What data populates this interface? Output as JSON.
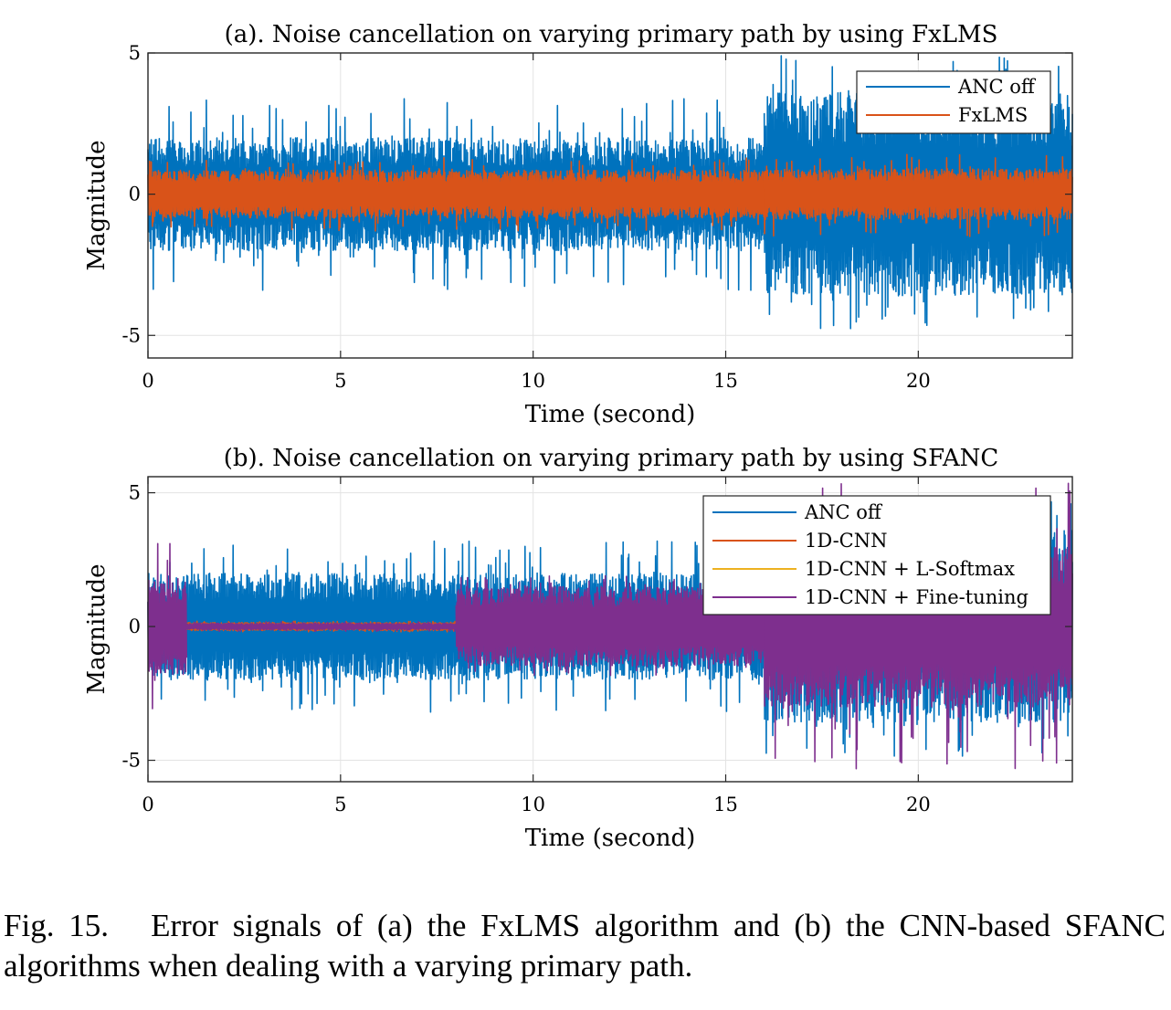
{
  "chart_data": [
    {
      "type": "line",
      "title": "(a). Noise cancellation on varying primary path by using FxLMS",
      "xlabel": "Time (second)",
      "ylabel": "Magnitude",
      "xlim": [
        0,
        24
      ],
      "ylim": [
        -5.8,
        5
      ],
      "xticks": [
        0,
        5,
        10,
        15,
        20
      ],
      "xtick_labels": [
        "0",
        "5",
        "10",
        "15",
        "20"
      ],
      "yticks": [
        5,
        0,
        -5
      ],
      "ytick_labels": [
        "5",
        "0",
        "-5"
      ],
      "grid": true,
      "legend_position": "top-right",
      "series": [
        {
          "name": "ANC off",
          "color": "#0072BD",
          "segments": [
            {
              "start": 0,
              "end": 16,
              "amplitude": 2.0,
              "peak": 3.4
            },
            {
              "start": 16,
              "end": 24,
              "amplitude": 3.6,
              "peak": 4.9
            }
          ]
        },
        {
          "name": "FxLMS",
          "color": "#D95319",
          "segments": [
            {
              "start": 0,
              "end": 16,
              "amplitude": 0.85,
              "peak": 1.3
            },
            {
              "start": 16,
              "end": 24,
              "amplitude": 0.9,
              "peak": 1.5
            }
          ]
        }
      ]
    },
    {
      "type": "line",
      "title": "(b). Noise cancellation on varying primary path by using SFANC",
      "xlabel": "Time (second)",
      "ylabel": "Magnitude",
      "xlim": [
        0,
        24
      ],
      "ylim": [
        -5.8,
        5.6
      ],
      "xticks": [
        0,
        5,
        10,
        15,
        20
      ],
      "xtick_labels": [
        "0",
        "5",
        "10",
        "15",
        "20"
      ],
      "yticks": [
        5,
        0,
        -5
      ],
      "ytick_labels": [
        "5",
        "0",
        "-5"
      ],
      "grid": true,
      "legend_position": "top-right",
      "series": [
        {
          "name": "ANC off",
          "color": "#0072BD",
          "segments": [
            {
              "start": 0,
              "end": 16,
              "amplitude": 2.0,
              "peak": 3.2
            },
            {
              "start": 16,
              "end": 24,
              "amplitude": 3.6,
              "peak": 4.9
            }
          ]
        },
        {
          "name": "1D-CNN",
          "color": "#D95319",
          "segments": [
            {
              "start": 1,
              "end": 8,
              "amplitude": 0.15,
              "peak": 0.2
            }
          ]
        },
        {
          "name": "1D-CNN + L-Softmax",
          "color": "#EDB120",
          "segments": []
        },
        {
          "name": "1D-CNN + Fine-tuning",
          "color": "#7E2F8E",
          "segments": [
            {
              "start": 0,
              "end": 1,
              "amplitude": 1.8,
              "peak": 3.4
            },
            {
              "start": 1,
              "end": 8,
              "amplitude": 0.12,
              "peak": 0.18
            },
            {
              "start": 8,
              "end": 16,
              "amplitude": 1.5,
              "peak": 1.9
            },
            {
              "start": 16,
              "end": 24,
              "amplitude": 3.0,
              "peak": 5.4
            }
          ]
        }
      ]
    }
  ],
  "caption": {
    "figure_number": "Fig. 15.",
    "text": "Error signals of (a) the FxLMS algorithm and (b) the CNN-based SFANC algorithms when dealing with a varying primary path."
  }
}
